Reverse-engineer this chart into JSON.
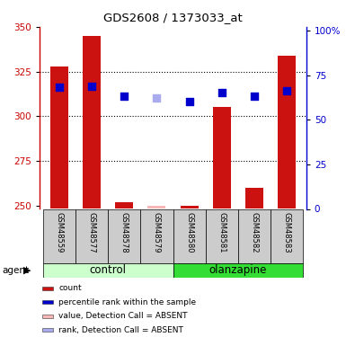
{
  "title": "GDS2608 / 1373033_at",
  "samples": [
    "GSM48559",
    "GSM48577",
    "GSM48578",
    "GSM48579",
    "GSM48580",
    "GSM48581",
    "GSM48582",
    "GSM48583"
  ],
  "bar_values": [
    328,
    345,
    252,
    250,
    250,
    305,
    260,
    334
  ],
  "bar_absent": [
    false,
    false,
    false,
    true,
    false,
    false,
    false,
    false
  ],
  "bar_color_present": "#cc1111",
  "bar_color_absent": "#f8b8b8",
  "dot_values": [
    316,
    317,
    311,
    310,
    308,
    313,
    311,
    314
  ],
  "dot_absent": [
    false,
    false,
    false,
    true,
    false,
    false,
    false,
    false
  ],
  "dot_color_present": "#0000cc",
  "dot_color_absent": "#aaaaee",
  "ylim_left": [
    248,
    350
  ],
  "yticks_left": [
    250,
    275,
    300,
    325,
    350
  ],
  "ylim_right": [
    0,
    102
  ],
  "yticks_right": [
    0,
    25,
    50,
    75,
    100
  ],
  "yticklabels_right": [
    "0",
    "25",
    "50",
    "75",
    "100%"
  ],
  "left_color": "#cc0000",
  "right_color": "#0000cc",
  "grid_lines": [
    275,
    300,
    325
  ],
  "bar_width": 0.55,
  "dot_size": 35,
  "control_color": "#ccffcc",
  "olanzapine_color": "#33dd33",
  "label_bg_color": "#cccccc",
  "agent_label": "agent",
  "group_labels": [
    "control",
    "olanzapine"
  ],
  "legend_items": [
    {
      "label": "count",
      "color": "#cc1111"
    },
    {
      "label": "percentile rank within the sample",
      "color": "#0000cc"
    },
    {
      "label": "value, Detection Call = ABSENT",
      "color": "#f8b8b8"
    },
    {
      "label": "rank, Detection Call = ABSENT",
      "color": "#aaaaee"
    }
  ]
}
